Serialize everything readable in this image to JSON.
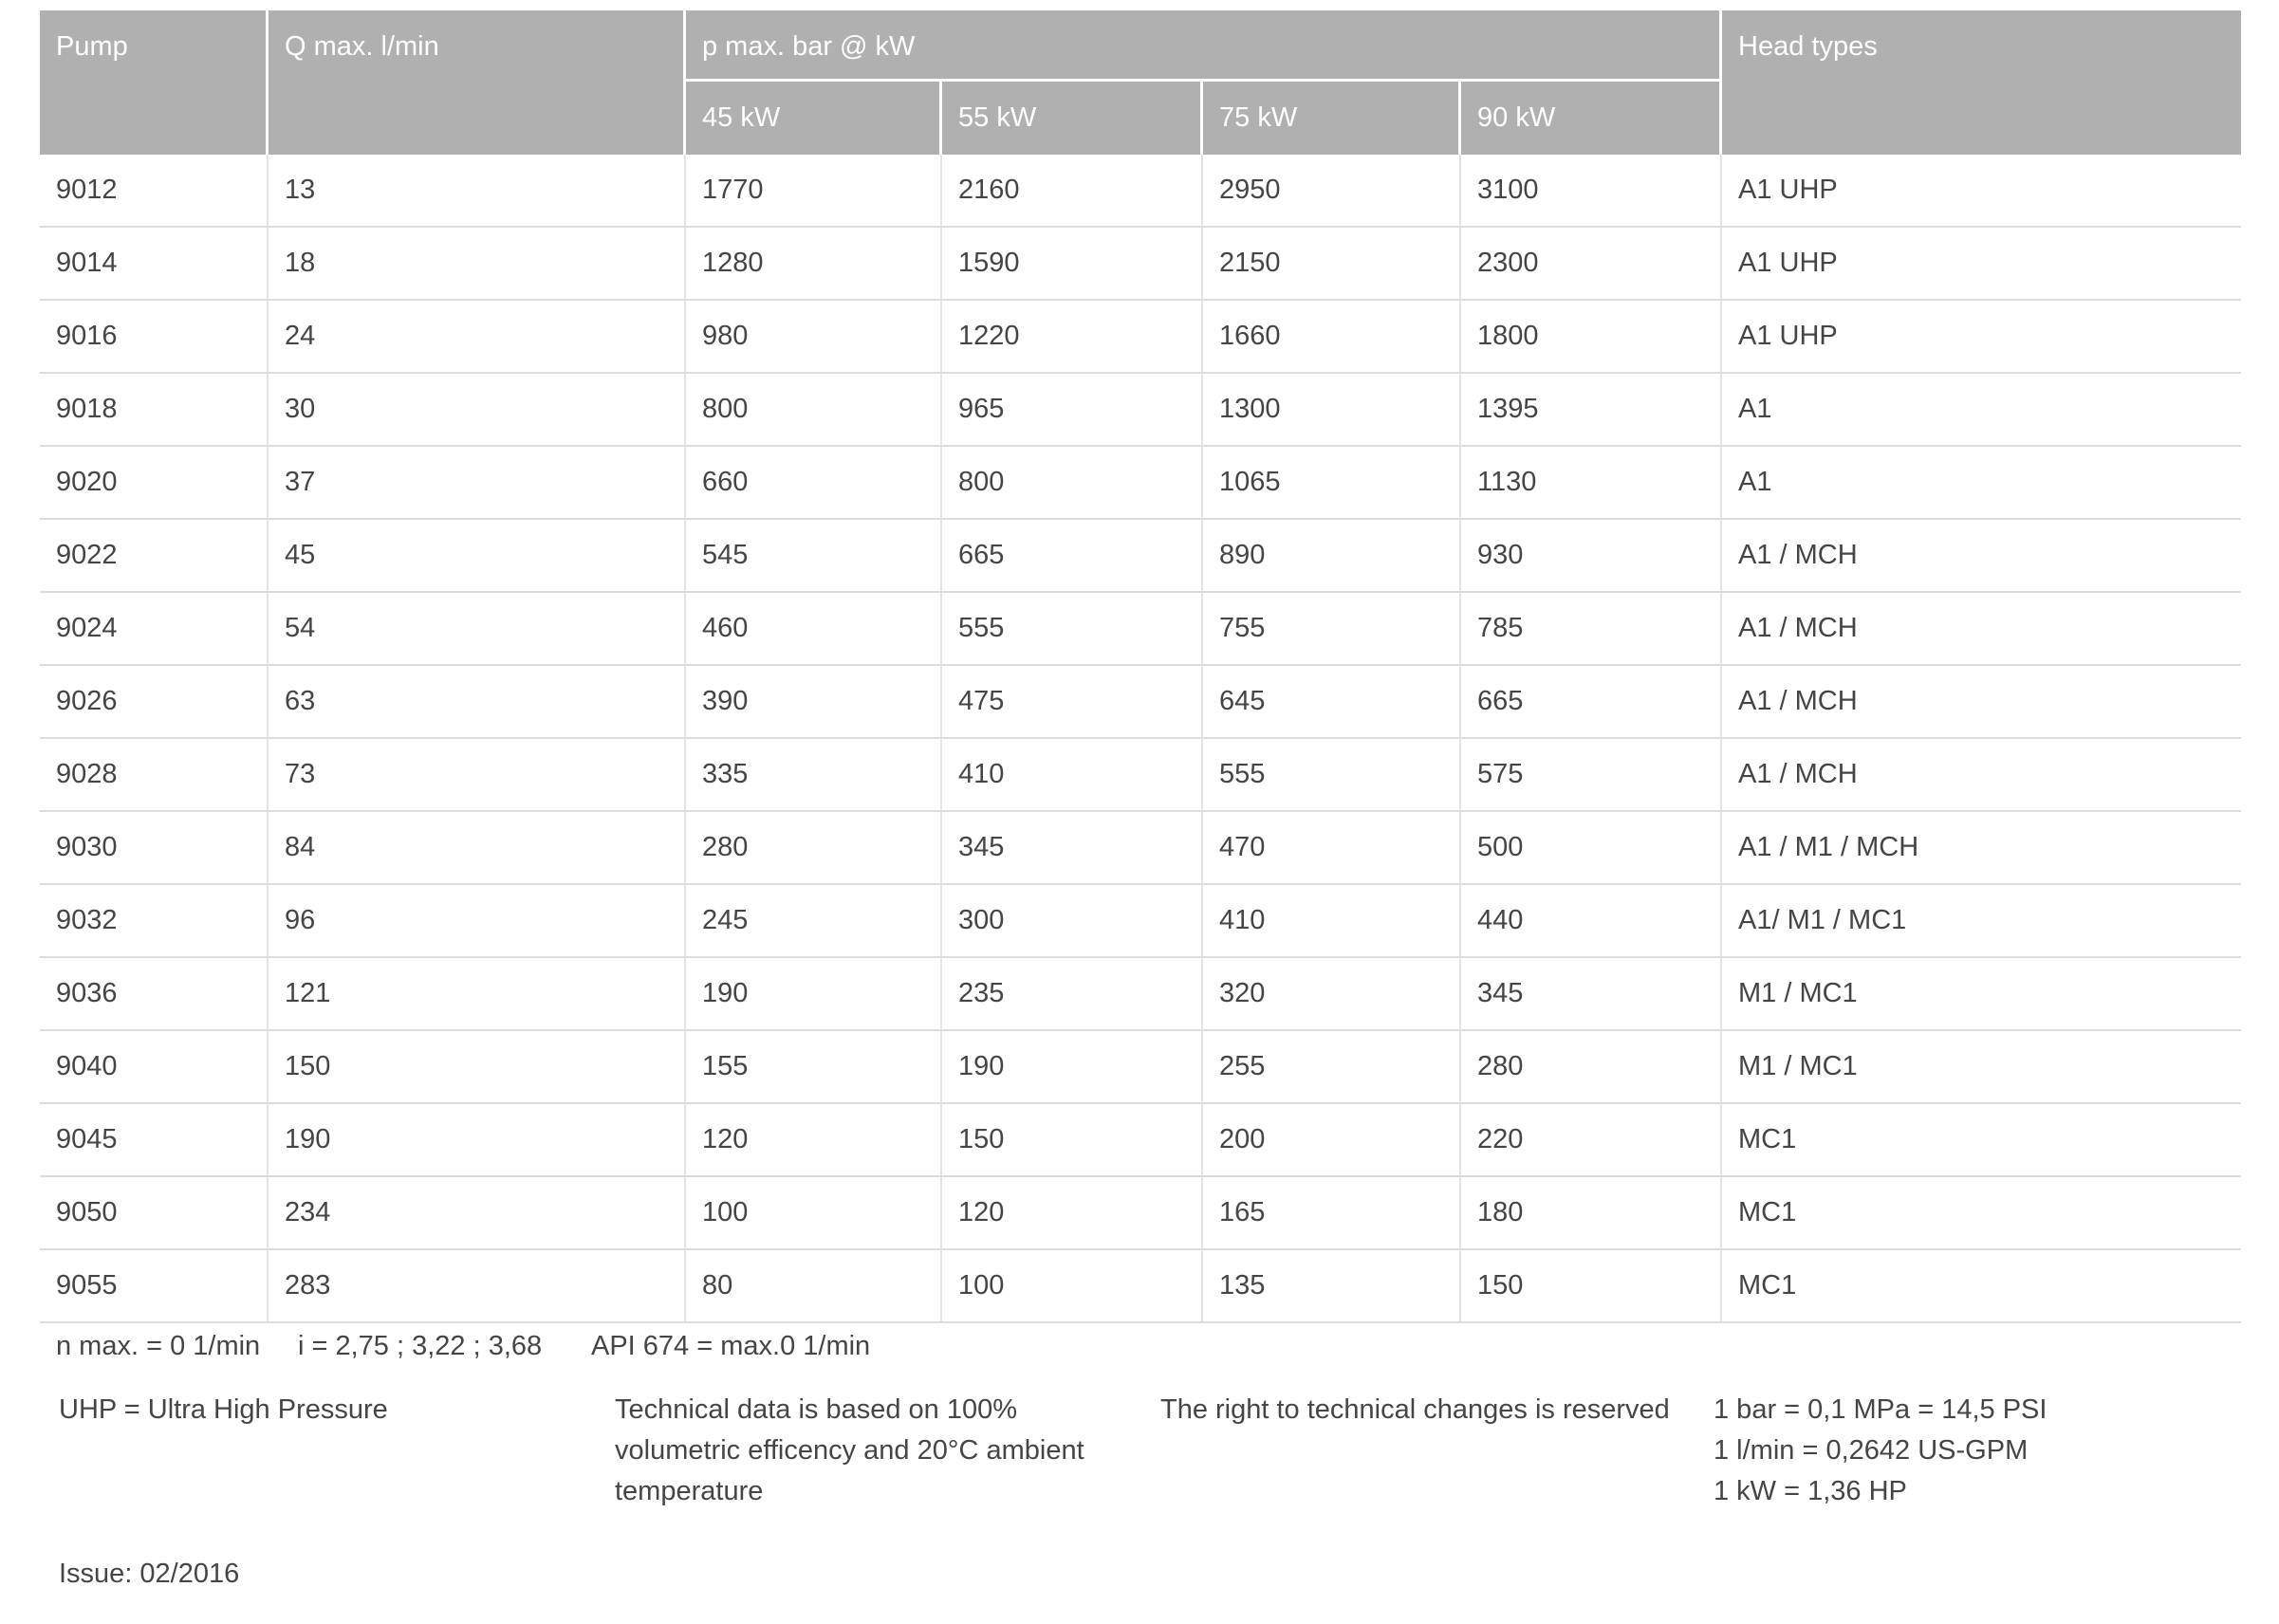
{
  "table": {
    "headers": {
      "pump": "Pump",
      "q_max": "Q max. l/min",
      "p_max_group": "p max. bar @ kW",
      "kw_columns": [
        "45 kW",
        "55 kW",
        "75 kW",
        "90 kW"
      ],
      "head_types": "Head types"
    },
    "rows": [
      {
        "pump": "9012",
        "qmax": "13",
        "kw": [
          "1770",
          "2160",
          "2950",
          "3100"
        ],
        "head": "A1 UHP"
      },
      {
        "pump": "9014",
        "qmax": "18",
        "kw": [
          "1280",
          "1590",
          "2150",
          "2300"
        ],
        "head": "A1 UHP"
      },
      {
        "pump": "9016",
        "qmax": "24",
        "kw": [
          "980",
          "1220",
          "1660",
          "1800"
        ],
        "head": "A1 UHP"
      },
      {
        "pump": "9018",
        "qmax": "30",
        "kw": [
          "800",
          "965",
          "1300",
          "1395"
        ],
        "head": "A1"
      },
      {
        "pump": "9020",
        "qmax": "37",
        "kw": [
          "660",
          "800",
          "1065",
          "1130"
        ],
        "head": "A1"
      },
      {
        "pump": "9022",
        "qmax": "45",
        "kw": [
          "545",
          "665",
          "890",
          "930"
        ],
        "head": "A1 / MCH"
      },
      {
        "pump": "9024",
        "qmax": "54",
        "kw": [
          "460",
          "555",
          "755",
          "785"
        ],
        "head": "A1 / MCH"
      },
      {
        "pump": "9026",
        "qmax": "63",
        "kw": [
          "390",
          "475",
          "645",
          "665"
        ],
        "head": "A1 / MCH"
      },
      {
        "pump": "9028",
        "qmax": "73",
        "kw": [
          "335",
          "410",
          "555",
          "575"
        ],
        "head": "A1 / MCH"
      },
      {
        "pump": "9030",
        "qmax": "84",
        "kw": [
          "280",
          "345",
          "470",
          "500"
        ],
        "head": "A1 / M1 / MCH"
      },
      {
        "pump": "9032",
        "qmax": "96",
        "kw": [
          "245",
          "300",
          "410",
          "440"
        ],
        "head": "A1/ M1 / MC1"
      },
      {
        "pump": "9036",
        "qmax": "121",
        "kw": [
          "190",
          "235",
          "320",
          "345"
        ],
        "head": "M1 / MC1"
      },
      {
        "pump": "9040",
        "qmax": "150",
        "kw": [
          "155",
          "190",
          "255",
          "280"
        ],
        "head": "M1 / MC1"
      },
      {
        "pump": "9045",
        "qmax": "190",
        "kw": [
          "120",
          "150",
          "200",
          "220"
        ],
        "head": "MC1"
      },
      {
        "pump": "9050",
        "qmax": "234",
        "kw": [
          "100",
          "120",
          "165",
          "180"
        ],
        "head": "MC1"
      },
      {
        "pump": "9055",
        "qmax": "283",
        "kw": [
          "80",
          "100",
          "135",
          "150"
        ],
        "head": "MC1"
      }
    ]
  },
  "footnotes": {
    "n_max": "n max. = 0 1/min",
    "i_ratios": "i = 2,75 ; 3,22 ; 3,68",
    "api": "API 674 = max.0 1/min",
    "uhp": "UHP = Ultra High Pressure",
    "technical_lines": [
      "Technical data is based on 100%",
      "volumetric efficency and 20°C ambient",
      "temperature"
    ],
    "rights": "The right to technical changes is reserved",
    "conversion_lines": [
      "1 bar = 0,1 MPa = 14,5 PSI",
      "1 l/min = 0,2642 US-GPM",
      "1 kW = 1,36 HP"
    ],
    "issue": "Issue: 02/2016"
  },
  "colors": {
    "header_bg": "#b0b0b0",
    "header_text": "#ffffff",
    "body_text": "#454545",
    "row_line": "#dcdcdc",
    "column_line": "#e4e4e4"
  }
}
